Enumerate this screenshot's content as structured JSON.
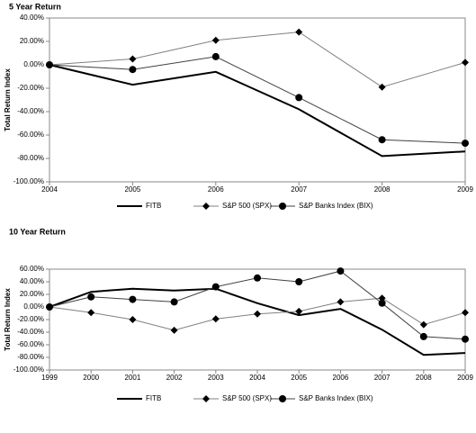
{
  "chart_data": [
    {
      "type": "line",
      "title": "5 Year Return",
      "y_label": "Total Return Index",
      "x": [
        2004,
        2005,
        2006,
        2007,
        2008,
        2009
      ],
      "xlim": [
        2004,
        2009
      ],
      "xticks": [
        2004,
        2005,
        2006,
        2007,
        2008,
        2009
      ],
      "ylim": [
        -100,
        40
      ],
      "yticks": [
        {
          "value": -100,
          "label": "-100.00%"
        },
        {
          "value": -80,
          "label": "-80.00%"
        },
        {
          "value": -60,
          "label": "-60.00%"
        },
        {
          "value": -40,
          "label": "-40.00%"
        },
        {
          "value": -20,
          "label": "-20.00%"
        },
        {
          "value": 0,
          "label": "0.00%"
        },
        {
          "value": 20,
          "label": "20.00%"
        },
        {
          "value": 40,
          "label": "40.00%"
        }
      ],
      "legend": "bottom",
      "series": [
        {
          "name": "FITB",
          "color": "#000000",
          "width": 2,
          "marker": null,
          "values": [
            0,
            -17,
            -6,
            -38,
            -78,
            -74
          ]
        },
        {
          "name": "S&P 500 (SPX)",
          "color": "#808080",
          "width": 1,
          "marker": "diamond",
          "marker_color": "#000000",
          "values": [
            0,
            5,
            21,
            28,
            -19,
            2
          ]
        },
        {
          "name": "S&P Banks Index (BIX)",
          "color": "#404040",
          "width": 1,
          "marker": "circle",
          "marker_color": "#000000",
          "values": [
            0,
            -4,
            7,
            -28,
            -64,
            -67
          ]
        }
      ]
    },
    {
      "type": "line",
      "title": "10 Year Return",
      "y_label": "Total Return Index",
      "x": [
        1999,
        2000,
        2001,
        2002,
        2003,
        2004,
        2005,
        2006,
        2007,
        2008,
        2009
      ],
      "xlim": [
        1999,
        2009
      ],
      "xticks": [
        1999,
        2000,
        2001,
        2002,
        2003,
        2004,
        2005,
        2006,
        2007,
        2008,
        2009
      ],
      "ylim": [
        -100,
        60
      ],
      "yticks": [
        {
          "value": -100,
          "label": "-100.00%"
        },
        {
          "value": -80,
          "label": "-80.00%"
        },
        {
          "value": -60,
          "label": "-60.00%"
        },
        {
          "value": -40,
          "label": "-40.00%"
        },
        {
          "value": -20,
          "label": "-20.00%"
        },
        {
          "value": 0,
          "label": "0.00%"
        },
        {
          "value": 20,
          "label": "20.00%"
        },
        {
          "value": 40,
          "label": "40.00%"
        },
        {
          "value": 60,
          "label": "60.00%"
        }
      ],
      "legend": "bottom",
      "series": [
        {
          "name": "FITB",
          "color": "#000000",
          "width": 2,
          "marker": null,
          "values": [
            0,
            24,
            29,
            26,
            29,
            6,
            -13,
            -3,
            -36,
            -76,
            -73
          ]
        },
        {
          "name": "S&P 500 (SPX)",
          "color": "#808080",
          "width": 1,
          "marker": "diamond",
          "marker_color": "#000000",
          "values": [
            0,
            -9,
            -20,
            -37,
            -19,
            -11,
            -7,
            8,
            14,
            -28,
            -9
          ]
        },
        {
          "name": "S&P Banks Index (BIX)",
          "color": "#404040",
          "width": 1,
          "marker": "circle",
          "marker_color": "#000000",
          "values": [
            0,
            16,
            12,
            8,
            32,
            46,
            40,
            57,
            6,
            -47,
            -51
          ]
        }
      ]
    }
  ]
}
